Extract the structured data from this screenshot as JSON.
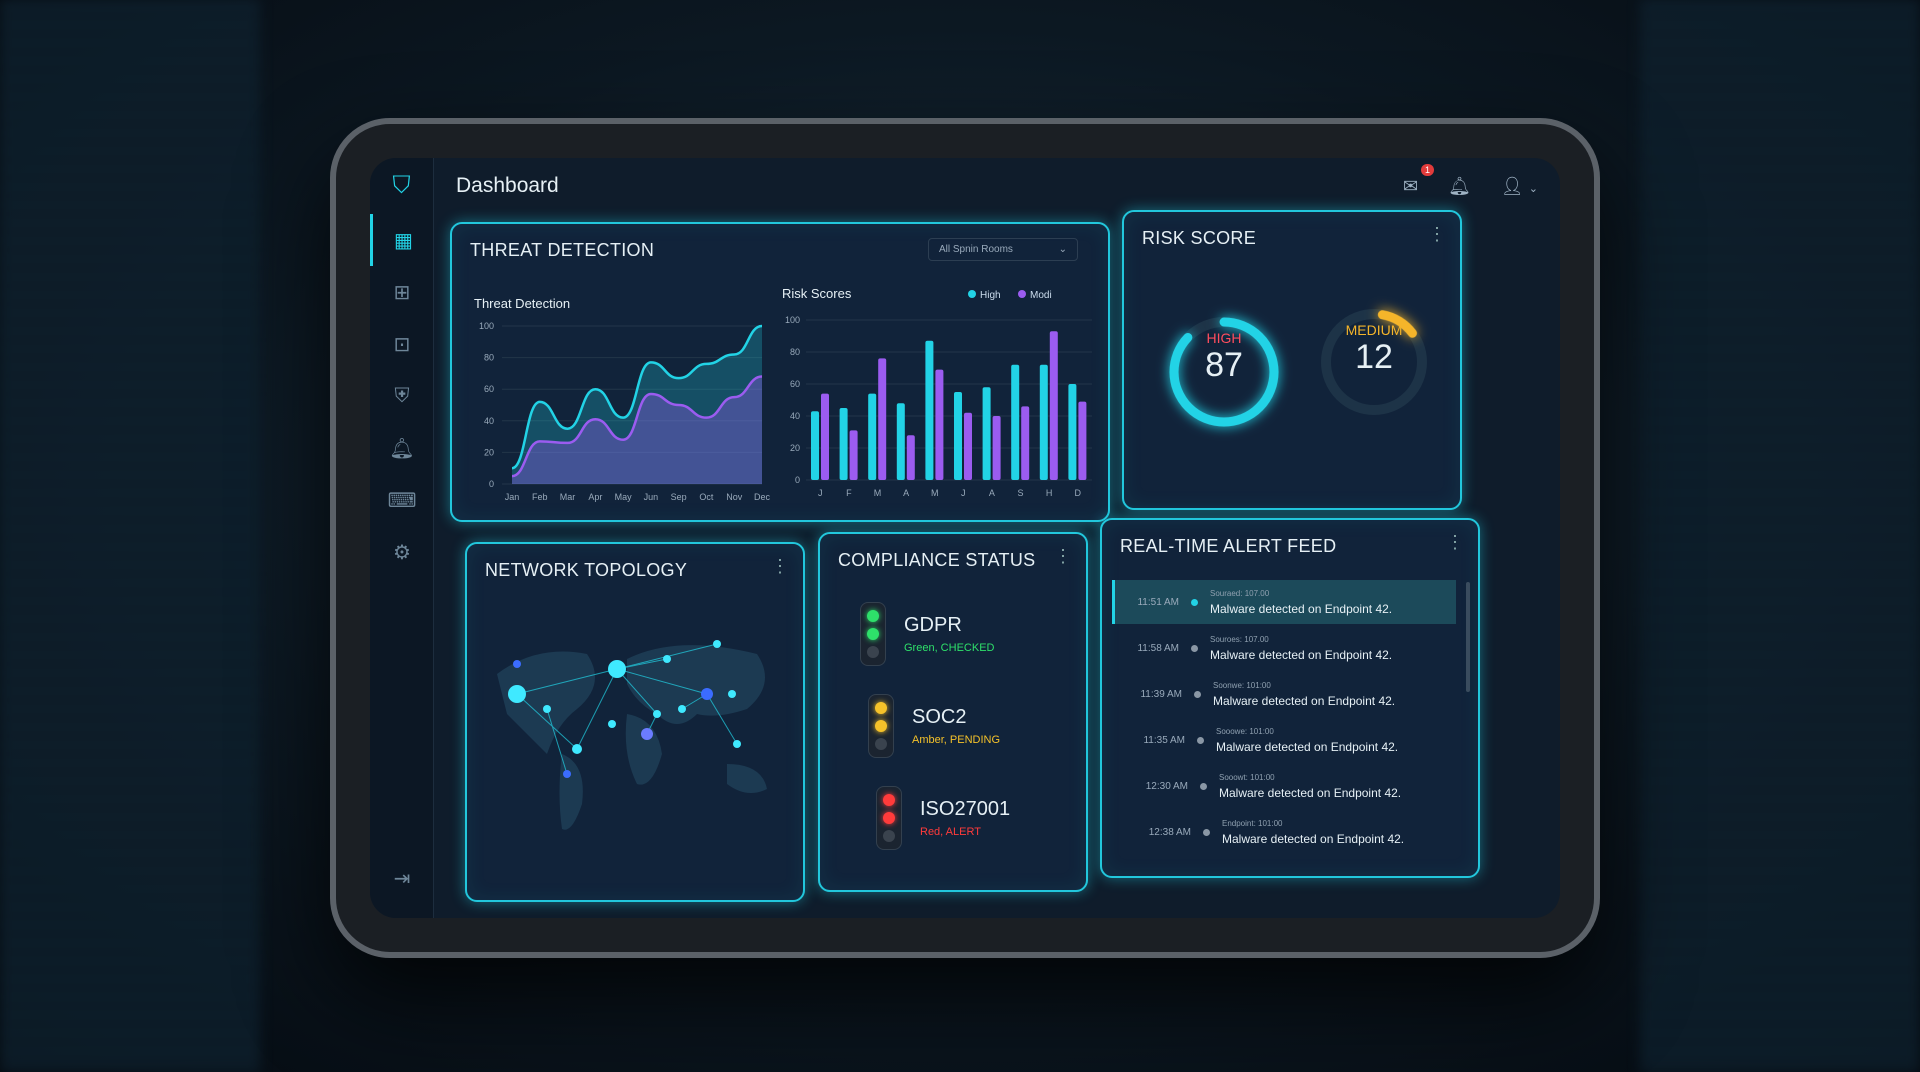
{
  "header": {
    "title": "Dashboard",
    "mail_badge": "1"
  },
  "sidebar": {
    "items": [
      "dashboard",
      "apps",
      "billing",
      "shield",
      "notifications",
      "keyboard",
      "settings"
    ],
    "logout": "logout"
  },
  "threat": {
    "title": "THREAT DETECTION",
    "filter": "All Spnin Rooms",
    "line_title": "Threat Detection",
    "bar_title": "Risk Scores"
  },
  "chart_data": [
    {
      "type": "area",
      "title": "Threat Detection",
      "categories": [
        "Jan",
        "Feb",
        "Mar",
        "Apr",
        "May",
        "Jun",
        "Sep",
        "Oct",
        "Nov",
        "Dec"
      ],
      "ylim": [
        0,
        100
      ],
      "yticks": [
        0,
        20,
        40,
        60,
        80,
        100
      ],
      "series": [
        {
          "values": [
            10,
            52,
            35,
            60,
            42,
            77,
            67,
            76,
            82,
            100
          ],
          "color": "#22d3e6"
        },
        {
          "values": [
            5,
            27,
            26,
            41,
            28,
            57,
            50,
            42,
            55,
            68
          ],
          "color": "#9b5cf0"
        }
      ]
    },
    {
      "type": "bar",
      "title": "Risk Scores",
      "categories": [
        "J",
        "F",
        "M",
        "A",
        "M",
        "J",
        "A",
        "S",
        "H",
        "D"
      ],
      "ylim": [
        0,
        100
      ],
      "yticks": [
        0,
        20,
        40,
        60,
        80,
        100
      ],
      "legend": "top-right",
      "series": [
        {
          "name": "High",
          "values": [
            43,
            45,
            54,
            48,
            87,
            55,
            58,
            72,
            72,
            60
          ],
          "color": "#22d3e6"
        },
        {
          "name": "Modi",
          "values": [
            54,
            31,
            76,
            28,
            69,
            42,
            40,
            46,
            93,
            49
          ],
          "color": "#9b5cf0"
        }
      ]
    }
  ],
  "risk": {
    "title": "RISK SCORE",
    "high_label": "HIGH",
    "high_value": "87",
    "high_fill": 0.87,
    "medium_label": "MEDIUM",
    "medium_value": "12",
    "medium_fill": 0.12,
    "high_color": "#ff4d5e",
    "medium_color": "#f5b52a",
    "ring_color": "#22d3e6"
  },
  "network": {
    "title": "NETWORK TOPOLOGY"
  },
  "compliance": {
    "title": "COMPLIANCE STATUS",
    "items": [
      {
        "name": "GDPR",
        "status": "Green, CHECKED",
        "color": "#2ee06a"
      },
      {
        "name": "SOC2",
        "status": "Amber, PENDING",
        "color": "#f5c22a"
      },
      {
        "name": "ISO27001",
        "status": "Red, ALERT",
        "color": "#ff3b3b"
      }
    ]
  },
  "alerts": {
    "title": "REAL-TIME ALERT FEED",
    "items": [
      {
        "time": "11:51 AM",
        "source": "Souraed: 107.00",
        "msg": "Malware detected on Endpoint 42."
      },
      {
        "time": "11:58 AM",
        "source": "Souroes: 107.00",
        "msg": "Malware detected on Endpoint 42."
      },
      {
        "time": "11:39 AM",
        "source": "Soonwe: 101:00",
        "msg": "Malware detected on Endpoint 42."
      },
      {
        "time": "11:35 AM",
        "source": "Sooowe: 101:00",
        "msg": "Malware detected on Endpoint 42."
      },
      {
        "time": "12:30 AM",
        "source": "Sooowt: 101:00",
        "msg": "Malware detected on Endpoint 42."
      },
      {
        "time": "12:38 AM",
        "source": "Endpoint: 101:00",
        "msg": "Malware detected on Endpoint 42."
      }
    ]
  }
}
